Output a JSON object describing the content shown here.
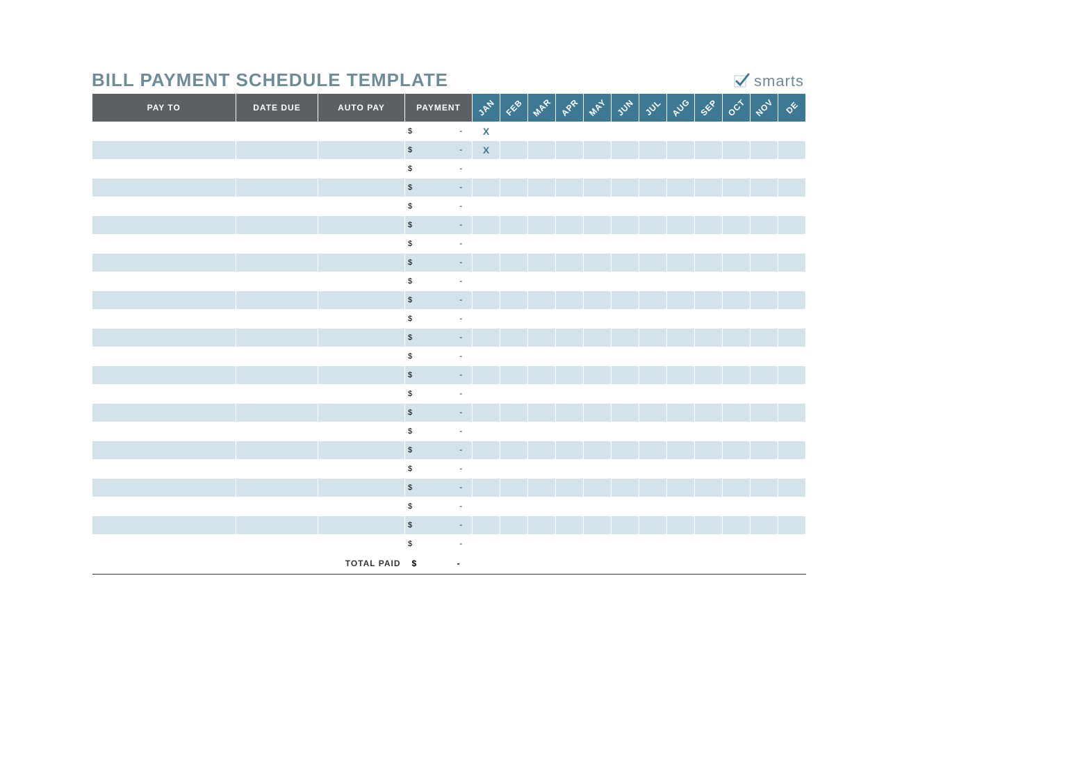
{
  "brand": {
    "title": "BILL PAYMENT SCHEDULE TEMPLATE",
    "logo_text": "smarts",
    "title_color": "#6f8b98",
    "title_fontsize": 26
  },
  "table": {
    "header_bg": "#5a6064",
    "header_fg": "#ffffff",
    "month_bg": "#3e7993",
    "row_even_bg": "#d4e3ea",
    "row_odd_bg": "#ffffff",
    "mark_color": "#3e7993",
    "columns_main": [
      "PAY TO",
      "DATE DUE",
      "AUTO PAY",
      "PAYMENT"
    ],
    "months": [
      "JAN",
      "FEB",
      "MAR",
      "APR",
      "MAY",
      "JUN",
      "JUL",
      "AUG",
      "SEP",
      "OCT",
      "NOV",
      "DE"
    ],
    "col_widths_main": [
      207,
      118,
      125,
      97
    ],
    "month_col_width": 40,
    "row_count": 23,
    "payment_currency": "$",
    "payment_value": "-",
    "marks": [
      {
        "row": 0,
        "month": 0,
        "text": "X"
      },
      {
        "row": 1,
        "month": 0,
        "text": "X"
      }
    ],
    "total_label": "TOTAL PAID",
    "total_currency": "$",
    "total_value": "-"
  }
}
